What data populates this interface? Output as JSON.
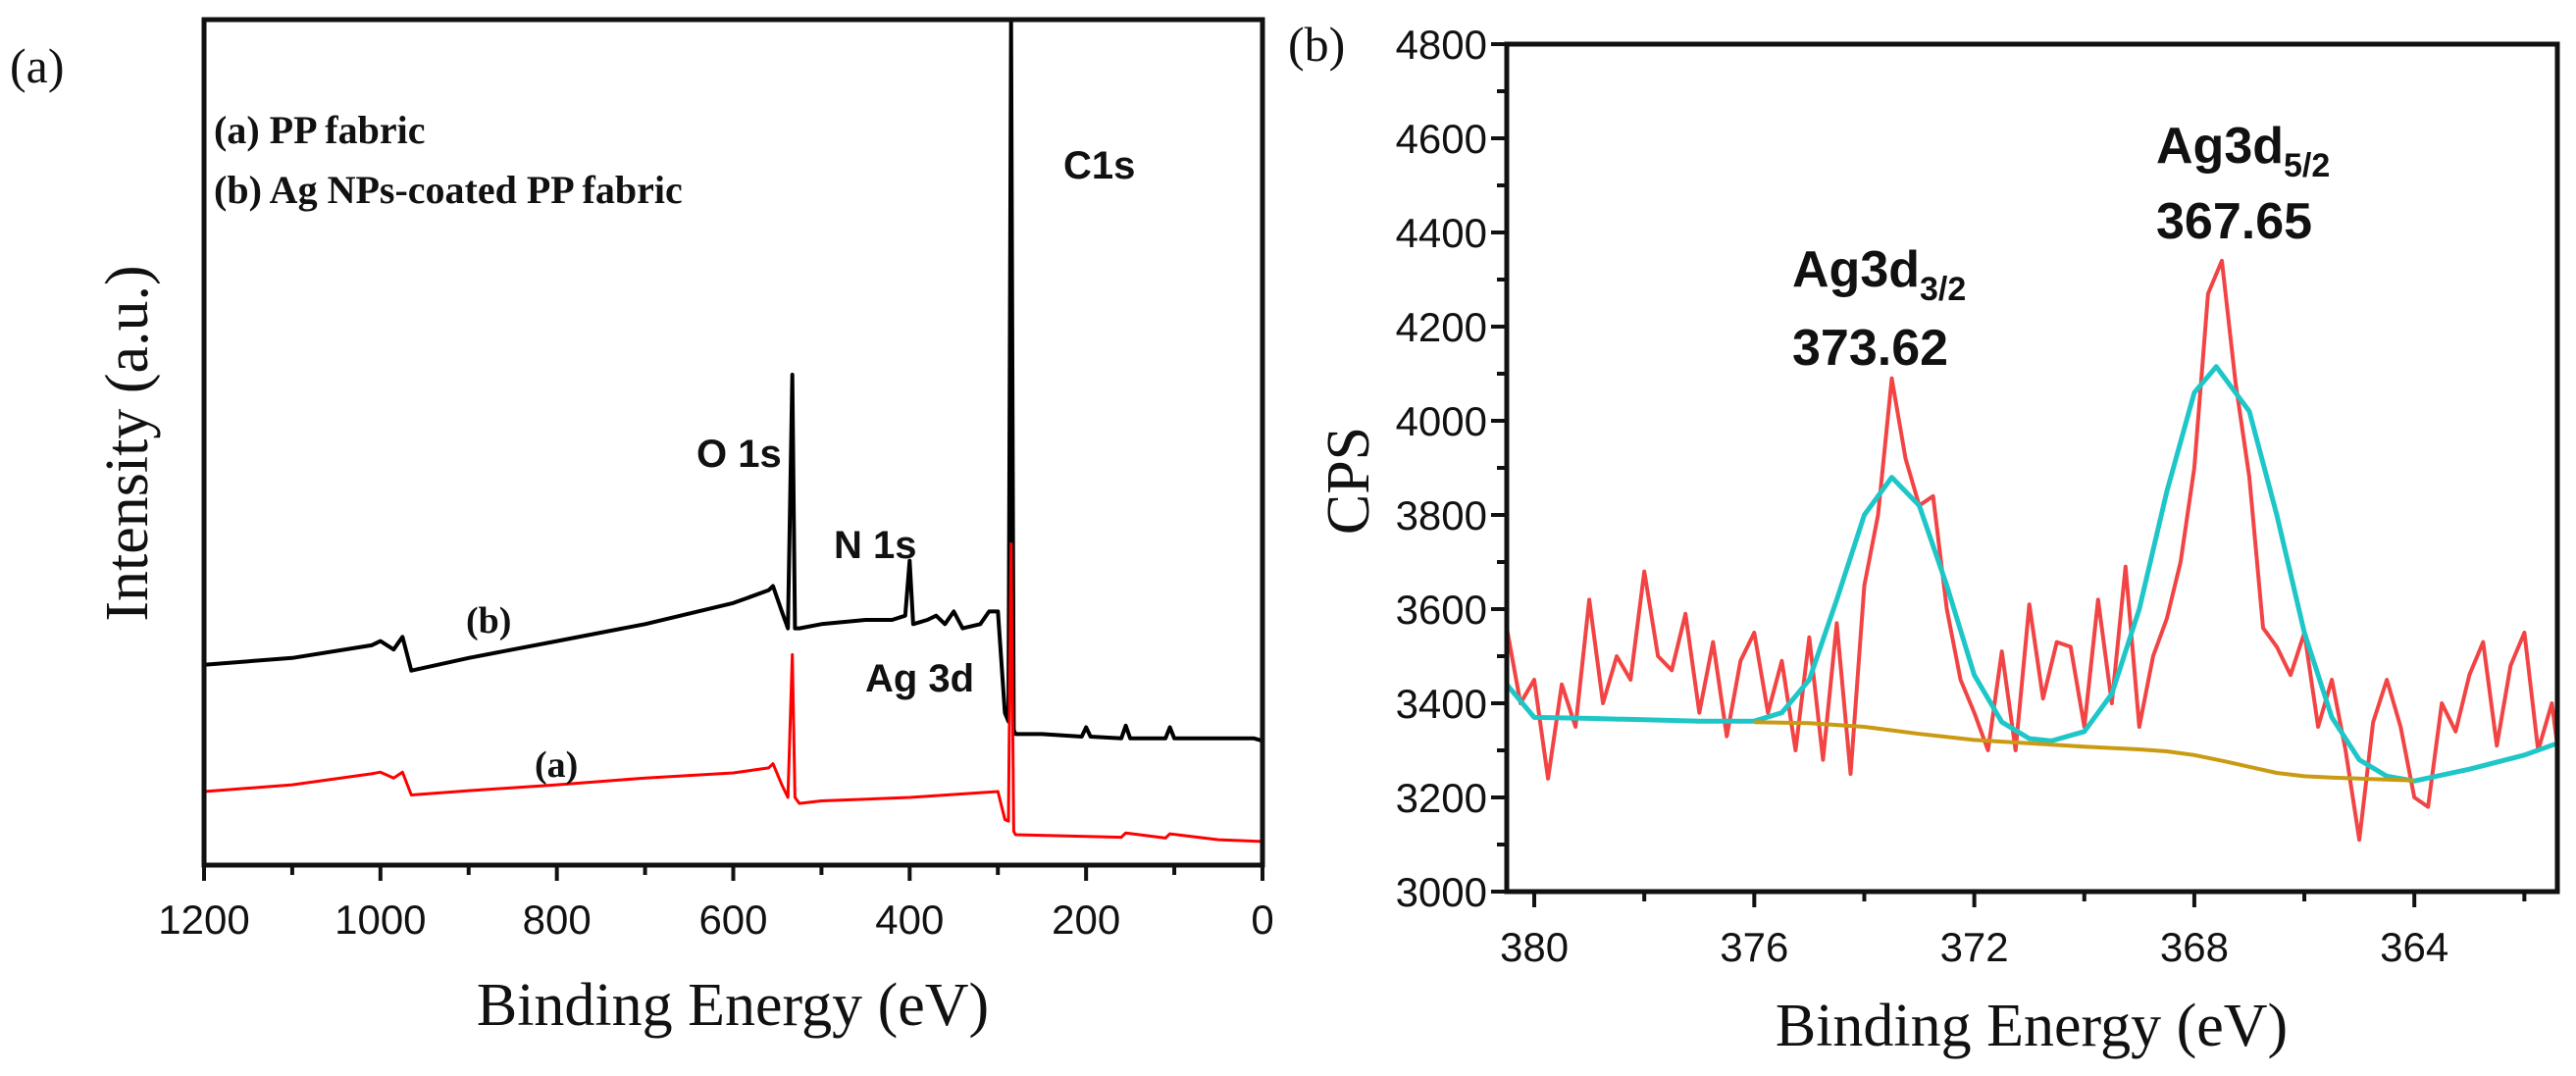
{
  "chart_data": [
    {
      "panel_label": "(a)",
      "type": "line",
      "xlabel": "Binding Energy (eV)",
      "ylabel": "Intensity (a.u.)",
      "xlim": [
        1200,
        0
      ],
      "x_reversed": true,
      "ylim": [
        0,
        100
      ],
      "y_ticks_shown": false,
      "x_ticks": [
        1200,
        1000,
        800,
        600,
        400,
        200,
        0
      ],
      "grid": false,
      "legend": {
        "placement": "top-left",
        "entries": [
          "(a) PP fabric",
          "(b) Ag NPs-coated PP fabric"
        ]
      },
      "annotations": [
        "C1s",
        "O 1s",
        "N 1s",
        "Ag 3d"
      ],
      "curve_labels": [
        "(b)",
        "(a)"
      ],
      "series": [
        {
          "name": "(b)",
          "color": "#000000",
          "x": [
            1200,
            1100,
            1010,
            1000,
            985,
            975,
            965,
            900,
            800,
            700,
            600,
            560,
            555,
            545,
            538,
            533,
            530,
            525,
            500,
            450,
            420,
            405,
            400,
            396,
            380,
            370,
            360,
            350,
            345,
            340,
            320,
            310,
            300,
            292,
            288,
            285,
            282,
            280,
            250,
            205,
            200,
            195,
            160,
            155,
            150,
            110,
            105,
            100,
            50,
            10,
            0
          ],
          "y": [
            23.7,
            24.5,
            26,
            26.5,
            25.5,
            27,
            23,
            24.5,
            26.5,
            28.5,
            31,
            32.5,
            33,
            30,
            28,
            58,
            28,
            28,
            28.5,
            29,
            29,
            29.5,
            36,
            28.5,
            29,
            29.5,
            28.5,
            30,
            29,
            28,
            28.5,
            30,
            30,
            18,
            17,
            100,
            16,
            15.5,
            15.5,
            15.2,
            16.3,
            15.2,
            15,
            16.5,
            15,
            15,
            16.3,
            15,
            15,
            15,
            14.7
          ]
        },
        {
          "name": "(a)",
          "color": "#ff0000",
          "x": [
            1200,
            1100,
            1010,
            1000,
            985,
            975,
            965,
            900,
            800,
            700,
            600,
            560,
            555,
            545,
            538,
            533,
            530,
            525,
            500,
            400,
            300,
            292,
            288,
            285,
            282,
            280,
            200,
            160,
            155,
            110,
            105,
            50,
            0
          ],
          "y": [
            8.7,
            9.5,
            10.8,
            11,
            10.3,
            11,
            8.3,
            8.8,
            9.5,
            10.3,
            10.9,
            11.5,
            12,
            9.5,
            8,
            24.9,
            8,
            7.3,
            7.6,
            8,
            8.7,
            5.4,
            5.2,
            38,
            4,
            3.6,
            3.4,
            3.3,
            3.8,
            3.2,
            3.7,
            3.0,
            2.8
          ]
        }
      ]
    },
    {
      "panel_label": "(b)",
      "type": "line",
      "xlabel": "Binding Energy (eV)",
      "ylabel": "CPS",
      "xlim": [
        380.5,
        361.4
      ],
      "x_reversed": true,
      "ylim": [
        3000,
        4800
      ],
      "x_ticks": [
        380,
        376,
        372,
        368,
        364
      ],
      "y_ticks": [
        3000,
        3200,
        3400,
        3600,
        3800,
        4000,
        4200,
        4400,
        4600,
        4800
      ],
      "grid": false,
      "peaks": [
        {
          "label": "Ag3d",
          "subscript": "3/2",
          "value": "373.62",
          "x": 373.62
        },
        {
          "label": "Ag3d",
          "subscript": "5/2",
          "value": "367.65",
          "x": 367.65
        }
      ],
      "series": [
        {
          "role": "raw",
          "color": "#f24444",
          "x": [
            380.5,
            380.25,
            380,
            379.75,
            379.5,
            379.25,
            379,
            378.75,
            378.5,
            378.25,
            378,
            377.75,
            377.5,
            377.25,
            377,
            376.75,
            376.5,
            376.25,
            376,
            375.75,
            375.5,
            375.25,
            375,
            374.75,
            374.5,
            374.25,
            374,
            373.75,
            373.5,
            373.25,
            373,
            372.75,
            372.5,
            372.25,
            372,
            371.75,
            371.5,
            371.25,
            371,
            370.75,
            370.5,
            370.25,
            370,
            369.75,
            369.5,
            369.25,
            369,
            368.75,
            368.5,
            368.25,
            368,
            367.75,
            367.5,
            367.25,
            367,
            366.75,
            366.5,
            366.25,
            366,
            365.75,
            365.5,
            365.25,
            365,
            364.75,
            364.5,
            364.25,
            364,
            363.75,
            363.5,
            363.25,
            363,
            362.75,
            362.5,
            362.25,
            362,
            361.75,
            361.5,
            361.4
          ],
          "y": [
            3560,
            3400,
            3450,
            3240,
            3440,
            3350,
            3620,
            3400,
            3500,
            3450,
            3680,
            3500,
            3470,
            3590,
            3380,
            3530,
            3330,
            3490,
            3550,
            3380,
            3490,
            3300,
            3540,
            3280,
            3570,
            3250,
            3650,
            3800,
            4090,
            3920,
            3820,
            3840,
            3600,
            3450,
            3380,
            3300,
            3510,
            3300,
            3610,
            3410,
            3530,
            3520,
            3350,
            3620,
            3400,
            3690,
            3350,
            3500,
            3580,
            3700,
            3900,
            4270,
            4340,
            4080,
            3880,
            3560,
            3520,
            3460,
            3550,
            3350,
            3450,
            3300,
            3110,
            3360,
            3450,
            3350,
            3200,
            3180,
            3400,
            3340,
            3460,
            3530,
            3310,
            3480,
            3550,
            3300,
            3400,
            3310
          ]
        },
        {
          "role": "fit",
          "color": "#1fc6c8",
          "x": [
            380.5,
            380,
            379,
            378,
            377,
            376,
            375.5,
            375,
            374.5,
            374,
            373.5,
            373,
            372.5,
            372,
            371.5,
            371,
            370.6,
            370,
            369.5,
            369,
            368.5,
            368,
            367.6,
            367,
            366.5,
            366,
            365.5,
            365,
            364.5,
            364,
            363,
            362,
            361.4
          ],
          "y": [
            3440,
            3370,
            3368,
            3365,
            3362,
            3362,
            3380,
            3450,
            3620,
            3800,
            3880,
            3820,
            3650,
            3460,
            3360,
            3325,
            3320,
            3340,
            3420,
            3600,
            3850,
            4060,
            4115,
            4020,
            3800,
            3550,
            3370,
            3280,
            3245,
            3235,
            3260,
            3290,
            3315
          ]
        },
        {
          "role": "background",
          "color": "#c99a12",
          "x": [
            376,
            375,
            374,
            373,
            372,
            371,
            370,
            369,
            368.5,
            368,
            367.5,
            367,
            366.5,
            366,
            365.5,
            365,
            364.5,
            364
          ],
          "y": [
            3360,
            3358,
            3350,
            3335,
            3322,
            3315,
            3308,
            3302,
            3298,
            3290,
            3278,
            3265,
            3252,
            3245,
            3242,
            3240,
            3238,
            3236
          ]
        }
      ]
    }
  ]
}
